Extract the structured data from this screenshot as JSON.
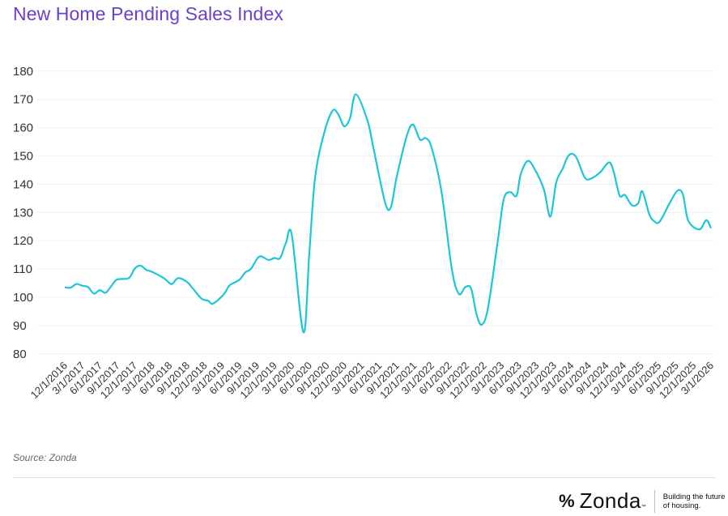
{
  "title": "New Home Pending Sales Index",
  "source": "Source: Zonda",
  "brand": {
    "name": "Zonda",
    "tm": "™",
    "tagline_line1": "Building the future",
    "tagline_line2": "of housing."
  },
  "colors": {
    "title": "#6a3fd3",
    "line": "#1cc6d6",
    "grid": "#f0f0f0"
  },
  "chart_data": {
    "type": "line",
    "title": "New Home Pending Sales Index",
    "xlabel": "",
    "ylabel": "",
    "ylim": [
      80,
      180
    ],
    "yticks": [
      180,
      170,
      160,
      150,
      140,
      130,
      120,
      110,
      100,
      90,
      80
    ],
    "grid": true,
    "x_unit": "months since 12/1/2016",
    "x_range": [
      0,
      111
    ],
    "xtick_labels": [
      "12/1/2016",
      "3/1/2017",
      "6/1/2017",
      "9/1/2017",
      "12/1/2017",
      "3/1/2018",
      "6/1/2018",
      "9/1/2018",
      "12/1/2018",
      "3/1/2019",
      "6/1/2019",
      "9/1/2019",
      "12/1/2019",
      "3/1/2020",
      "6/1/2020",
      "9/1/2020",
      "12/1/2020",
      "3/1/2021",
      "6/1/2021",
      "9/1/2021",
      "12/1/2021",
      "3/1/2022",
      "6/1/2022",
      "9/1/2022",
      "12/1/2022",
      "3/1/2023",
      "6/1/2023",
      "9/1/2023",
      "12/1/2023",
      "3/1/2024",
      "6/1/2024",
      "9/1/2024",
      "12/1/2024",
      "3/1/2025",
      "6/1/2025",
      "9/1/2025",
      "12/1/2025",
      "3/1/2026"
    ],
    "series": [
      {
        "name": "New Home Pending Sales Index",
        "points": [
          [
            0,
            103.5
          ],
          [
            1,
            103.4
          ],
          [
            2,
            104.7
          ],
          [
            3,
            104.1
          ],
          [
            4,
            103.6
          ],
          [
            5,
            101.3
          ],
          [
            6,
            102.5
          ],
          [
            7,
            101.6
          ],
          [
            8,
            104
          ],
          [
            9,
            106.3
          ],
          [
            11,
            106.8
          ],
          [
            12,
            110.1
          ],
          [
            13,
            111.2
          ],
          [
            14,
            109.7
          ],
          [
            15,
            109
          ],
          [
            17,
            106.8
          ],
          [
            18,
            105
          ],
          [
            18.5,
            104.8
          ],
          [
            19.5,
            106.8
          ],
          [
            21,
            105.4
          ],
          [
            22,
            103.1
          ],
          [
            23.5,
            99.5
          ],
          [
            24.6,
            98.8
          ],
          [
            25.5,
            97.8
          ],
          [
            27.4,
            101.3
          ],
          [
            28.3,
            104.2
          ],
          [
            30,
            106.2
          ],
          [
            31,
            108.8
          ],
          [
            32,
            110.1
          ],
          [
            33.4,
            114.4
          ],
          [
            35,
            113.2
          ],
          [
            36,
            113.9
          ],
          [
            37,
            113.9
          ],
          [
            38,
            119.3
          ],
          [
            39,
            122
          ],
          [
            41,
            87.6
          ],
          [
            42,
            115.6
          ],
          [
            43,
            142.4
          ],
          [
            44.5,
            157.7
          ],
          [
            46,
            166
          ],
          [
            47,
            164.6
          ],
          [
            48,
            160.5
          ],
          [
            49,
            163.4
          ],
          [
            50,
            171.8
          ],
          [
            52,
            162.5
          ],
          [
            53,
            153
          ],
          [
            55,
            133.7
          ],
          [
            56,
            131.8
          ],
          [
            57,
            142.4
          ],
          [
            58.7,
            156.8
          ],
          [
            59.8,
            161.1
          ],
          [
            61,
            155.8
          ],
          [
            62,
            156.3
          ],
          [
            63,
            153
          ],
          [
            64.7,
            137.5
          ],
          [
            66.5,
            109.8
          ],
          [
            67.7,
            101.2
          ],
          [
            68.8,
            103.6
          ],
          [
            69.8,
            103.1
          ],
          [
            70.7,
            94.2
          ],
          [
            71.6,
            90.3
          ],
          [
            72.7,
            96.3
          ],
          [
            74.4,
            120.3
          ],
          [
            75.4,
            134.7
          ],
          [
            76.5,
            137.2
          ],
          [
            77.6,
            135.9
          ],
          [
            78.3,
            143.4
          ],
          [
            79.5,
            148.2
          ],
          [
            80.7,
            145.4
          ],
          [
            82.3,
            138.1
          ],
          [
            83.4,
            128.5
          ],
          [
            84.4,
            140.5
          ],
          [
            85.5,
            145.4
          ],
          [
            86.6,
            150.3
          ],
          [
            87.8,
            149.7
          ],
          [
            89.3,
            142.4
          ],
          [
            90.4,
            142
          ],
          [
            92,
            144.3
          ],
          [
            93.5,
            147.7
          ],
          [
            94.3,
            144.3
          ],
          [
            95.3,
            136
          ],
          [
            96.2,
            136.2
          ],
          [
            97.4,
            132.6
          ],
          [
            98.5,
            133.3
          ],
          [
            99.2,
            137.5
          ],
          [
            100.4,
            129.4
          ],
          [
            101.3,
            126.8
          ],
          [
            102.2,
            126.8
          ],
          [
            104,
            133.7
          ],
          [
            105.3,
            137.8
          ],
          [
            106.2,
            136.2
          ],
          [
            107.1,
            127.1
          ],
          [
            109,
            124
          ],
          [
            110.2,
            127.3
          ],
          [
            111,
            124.4
          ]
        ]
      }
    ],
    "legend": "none"
  }
}
